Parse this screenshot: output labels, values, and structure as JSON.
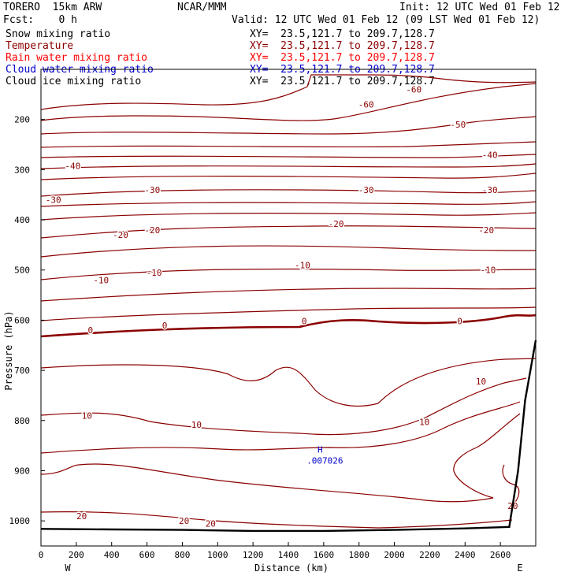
{
  "header": {
    "model": "TORERO  15km ARW",
    "center": "NCAR/MMM",
    "init": "Init: 12 UTC Wed 01 Feb 12",
    "fcst": "Fcst:    0 h",
    "valid": "Valid: 12 UTC Wed 01 Feb 12 (09 LST Wed 01 Feb 12)"
  },
  "fields": [
    {
      "name": "Snow mixing ratio",
      "xy": "XY=  23.5,121.7 to 209.7,128.7",
      "color": "#000000"
    },
    {
      "name": "Temperature",
      "xy": "XY=  23.5,121.7 to 209.7,128.7",
      "color": "#8b0000"
    },
    {
      "name": "Rain water mixing ratio",
      "xy": "XY=  23.5,121.7 to 209.7,128.7",
      "color": "#ff0000"
    },
    {
      "name": "Cloud water mixing ratio",
      "xy": "XY=  23.5,121.7 to 209.7,128.7",
      "color": "#0000cc"
    },
    {
      "name": "Cloud ice mixing ratio",
      "xy": "XY=  23.5,121.7 to 209.7,128.7",
      "color": "#000000"
    }
  ],
  "chart_data": {
    "type": "contour",
    "xlabel": "Distance (km)",
    "ylabel": "Pressure (hPa)",
    "xlim": [
      0,
      2800
    ],
    "ylim": [
      1050,
      100
    ],
    "x_ticks": [
      0,
      200,
      400,
      600,
      800,
      1000,
      1200,
      1400,
      1600,
      1800,
      2000,
      2200,
      2400,
      2600
    ],
    "y_ticks": [
      200,
      300,
      400,
      500,
      600,
      700,
      800,
      900,
      1000
    ],
    "x_end_labels": {
      "left": "W",
      "right": "E"
    },
    "contour_color": "#8b0000",
    "terrain_color": "#000000",
    "marker": {
      "symbol": "H",
      "value": ".007026",
      "x": 1580,
      "p": 870,
      "color": "#0000cc"
    },
    "terrain": [
      [
        0,
        1016
      ],
      [
        400,
        1017
      ],
      [
        800,
        1018
      ],
      [
        1200,
        1020
      ],
      [
        1600,
        1020
      ],
      [
        2000,
        1018
      ],
      [
        2400,
        1015
      ],
      [
        2650,
        1012
      ],
      [
        2700,
        900
      ],
      [
        2740,
        760
      ],
      [
        2800,
        640
      ]
    ],
    "contour_labels": [
      {
        "text": "-60",
        "x": 1840,
        "p": 170
      },
      {
        "text": "-60",
        "x": 2110,
        "p": 140
      },
      {
        "text": "-50",
        "x": 2360,
        "p": 210
      },
      {
        "text": "-40",
        "x": 180,
        "p": 292
      },
      {
        "text": "-40",
        "x": 2540,
        "p": 270
      },
      {
        "text": "-30",
        "x": 70,
        "p": 360
      },
      {
        "text": "-30",
        "x": 630,
        "p": 340
      },
      {
        "text": "-30",
        "x": 1840,
        "p": 340
      },
      {
        "text": "-30",
        "x": 2540,
        "p": 340
      },
      {
        "text": "-20",
        "x": 450,
        "p": 430
      },
      {
        "text": "-20",
        "x": 630,
        "p": 420
      },
      {
        "text": "-20",
        "x": 1670,
        "p": 408
      },
      {
        "text": "-20",
        "x": 2520,
        "p": 420
      },
      {
        "text": "-10",
        "x": 340,
        "p": 520
      },
      {
        "text": "-10",
        "x": 640,
        "p": 505
      },
      {
        "text": "-10",
        "x": 1480,
        "p": 490
      },
      {
        "text": "-10",
        "x": 2530,
        "p": 500
      },
      {
        "text": "0",
        "x": 280,
        "p": 620
      },
      {
        "text": "0",
        "x": 700,
        "p": 610
      },
      {
        "text": "0",
        "x": 1490,
        "p": 602
      },
      {
        "text": "0",
        "x": 2370,
        "p": 602
      },
      {
        "text": "10",
        "x": 260,
        "p": 790
      },
      {
        "text": "10",
        "x": 880,
        "p": 808
      },
      {
        "text": "10",
        "x": 2170,
        "p": 803
      },
      {
        "text": "10",
        "x": 2490,
        "p": 722
      },
      {
        "text": "20",
        "x": 230,
        "p": 990
      },
      {
        "text": "20",
        "x": 810,
        "p": 1000
      },
      {
        "text": "20",
        "x": 960,
        "p": 1005
      },
      {
        "text": "20",
        "x": 2670,
        "p": 970
      }
    ]
  }
}
